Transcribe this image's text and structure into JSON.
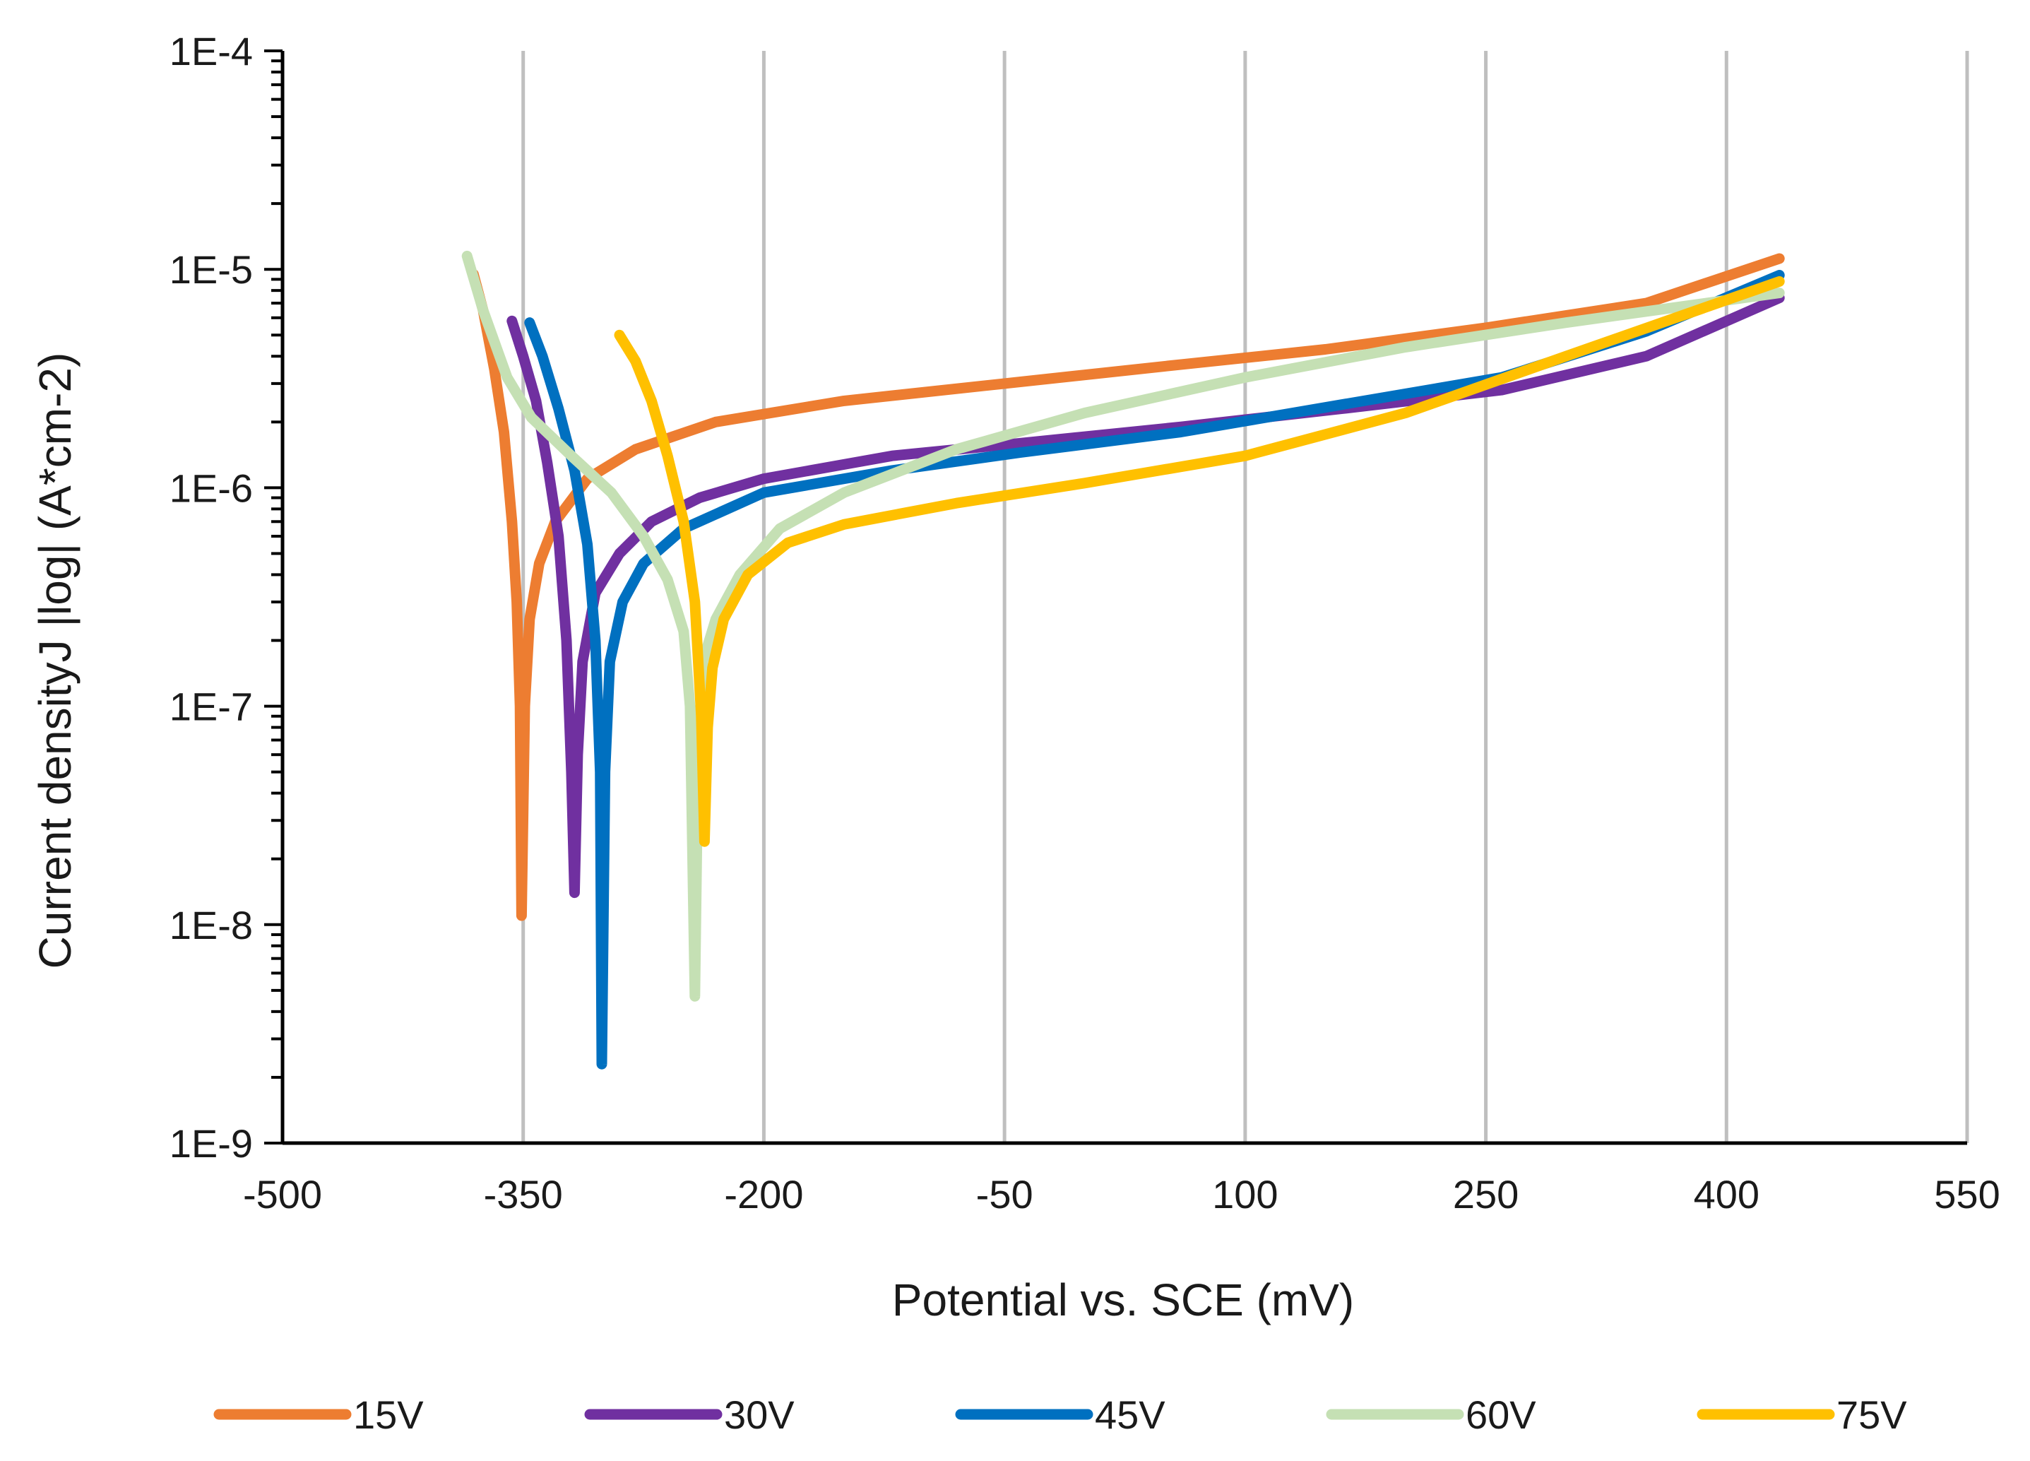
{
  "chart_data": {
    "type": "line",
    "title": "",
    "xlabel": "Potential vs. SCE (mV)",
    "ylabel": "Current densityJ |log| (A*cm-2)",
    "xlim": [
      -500,
      550
    ],
    "ylim": [
      1e-09,
      0.0001
    ],
    "yscale": "log",
    "x_ticks": [
      -500,
      -350,
      -200,
      -50,
      100,
      250,
      400,
      550
    ],
    "x_tick_labels": [
      "-500",
      "-350",
      "-200",
      "-50",
      "100",
      "250",
      "400",
      "550"
    ],
    "y_ticks": [
      1e-09,
      1e-08,
      1e-07,
      1e-06,
      1e-05,
      0.0001
    ],
    "y_tick_labels": [
      "1E-9",
      "1E-8",
      "1E-7",
      "1E-6",
      "1E-5",
      "1E-4"
    ],
    "grid": "vertical",
    "legend_position": "bottom",
    "series": [
      {
        "name": "15V",
        "color": "#ED7D31",
        "points": [
          [
            -381,
            9.5e-06
          ],
          [
            -375,
            6.5e-06
          ],
          [
            -368,
            3.5e-06
          ],
          [
            -362,
            1.8e-06
          ],
          [
            -357,
            7e-07
          ],
          [
            -354,
            3e-07
          ],
          [
            -352,
            1e-07
          ],
          [
            -351,
            1.1e-08
          ],
          [
            -349,
            1e-07
          ],
          [
            -346,
            2.5e-07
          ],
          [
            -340,
            4.5e-07
          ],
          [
            -330,
            7e-07
          ],
          [
            -310,
            1.1e-06
          ],
          [
            -280,
            1.5e-06
          ],
          [
            -230,
            2e-06
          ],
          [
            -150,
            2.5e-06
          ],
          [
            -50,
            3e-06
          ],
          [
            50,
            3.6e-06
          ],
          [
            150,
            4.3e-06
          ],
          [
            250,
            5.4e-06
          ],
          [
            350,
            7e-06
          ],
          [
            433,
            1.12e-05
          ]
        ]
      },
      {
        "name": "30V",
        "color": "#7030A0",
        "points": [
          [
            -357,
            5.8e-06
          ],
          [
            -350,
            4e-06
          ],
          [
            -342,
            2.5e-06
          ],
          [
            -335,
            1.3e-06
          ],
          [
            -328,
            6e-07
          ],
          [
            -323,
            2e-07
          ],
          [
            -320,
            5e-08
          ],
          [
            -318,
            1.4e-08
          ],
          [
            -316,
            6e-08
          ],
          [
            -313,
            1.6e-07
          ],
          [
            -305,
            3.3e-07
          ],
          [
            -290,
            5e-07
          ],
          [
            -270,
            7e-07
          ],
          [
            -240,
            9e-07
          ],
          [
            -200,
            1.1e-06
          ],
          [
            -120,
            1.4e-06
          ],
          [
            -40,
            1.6e-06
          ],
          [
            60,
            1.9e-06
          ],
          [
            160,
            2.3e-06
          ],
          [
            260,
            2.8e-06
          ],
          [
            350,
            4e-06
          ],
          [
            433,
            7.4e-06
          ]
        ]
      },
      {
        "name": "45V",
        "color": "#0070C0",
        "points": [
          [
            -346,
            5.7e-06
          ],
          [
            -338,
            4e-06
          ],
          [
            -328,
            2.3e-06
          ],
          [
            -318,
            1.2e-06
          ],
          [
            -310,
            5.5e-07
          ],
          [
            -305,
            2e-07
          ],
          [
            -302,
            5e-08
          ],
          [
            -301,
            2.3e-09
          ],
          [
            -299,
            5e-08
          ],
          [
            -296,
            1.6e-07
          ],
          [
            -288,
            3e-07
          ],
          [
            -275,
            4.5e-07
          ],
          [
            -250,
            6.5e-07
          ],
          [
            -200,
            9.5e-07
          ],
          [
            -120,
            1.2e-06
          ],
          [
            -40,
            1.45e-06
          ],
          [
            60,
            1.8e-06
          ],
          [
            160,
            2.4e-06
          ],
          [
            260,
            3.2e-06
          ],
          [
            350,
            5.2e-06
          ],
          [
            433,
            9.4e-06
          ]
        ]
      },
      {
        "name": "60V",
        "color": "#C5E0B4",
        "points": [
          [
            -385,
            1.15e-05
          ],
          [
            -375,
            6.5e-06
          ],
          [
            -360,
            3.2e-06
          ],
          [
            -345,
            2.1e-06
          ],
          [
            -320,
            1.4e-06
          ],
          [
            -295,
            9.5e-07
          ],
          [
            -275,
            6e-07
          ],
          [
            -260,
            3.8e-07
          ],
          [
            -250,
            2.2e-07
          ],
          [
            -246,
            1e-07
          ],
          [
            -243,
            4.7e-09
          ],
          [
            -241,
            6e-08
          ],
          [
            -238,
            1.6e-07
          ],
          [
            -230,
            2.5e-07
          ],
          [
            -215,
            4e-07
          ],
          [
            -190,
            6.5e-07
          ],
          [
            -150,
            9.5e-07
          ],
          [
            -80,
            1.5e-06
          ],
          [
            0,
            2.2e-06
          ],
          [
            100,
            3.2e-06
          ],
          [
            200,
            4.4e-06
          ],
          [
            300,
            5.7e-06
          ],
          [
            433,
            7.8e-06
          ]
        ]
      },
      {
        "name": "75V",
        "color": "#FFC000",
        "points": [
          [
            -290,
            5e-06
          ],
          [
            -280,
            3.8e-06
          ],
          [
            -270,
            2.5e-06
          ],
          [
            -260,
            1.4e-06
          ],
          [
            -250,
            7e-07
          ],
          [
            -243,
            3e-07
          ],
          [
            -239,
            9e-08
          ],
          [
            -237,
            2.4e-08
          ],
          [
            -235,
            8e-08
          ],
          [
            -232,
            1.5e-07
          ],
          [
            -225,
            2.5e-07
          ],
          [
            -210,
            4e-07
          ],
          [
            -185,
            5.6e-07
          ],
          [
            -150,
            6.8e-07
          ],
          [
            -80,
            8.5e-07
          ],
          [
            0,
            1.05e-06
          ],
          [
            100,
            1.4e-06
          ],
          [
            200,
            2.2e-06
          ],
          [
            300,
            4e-06
          ],
          [
            433,
            8.8e-06
          ]
        ]
      }
    ]
  }
}
